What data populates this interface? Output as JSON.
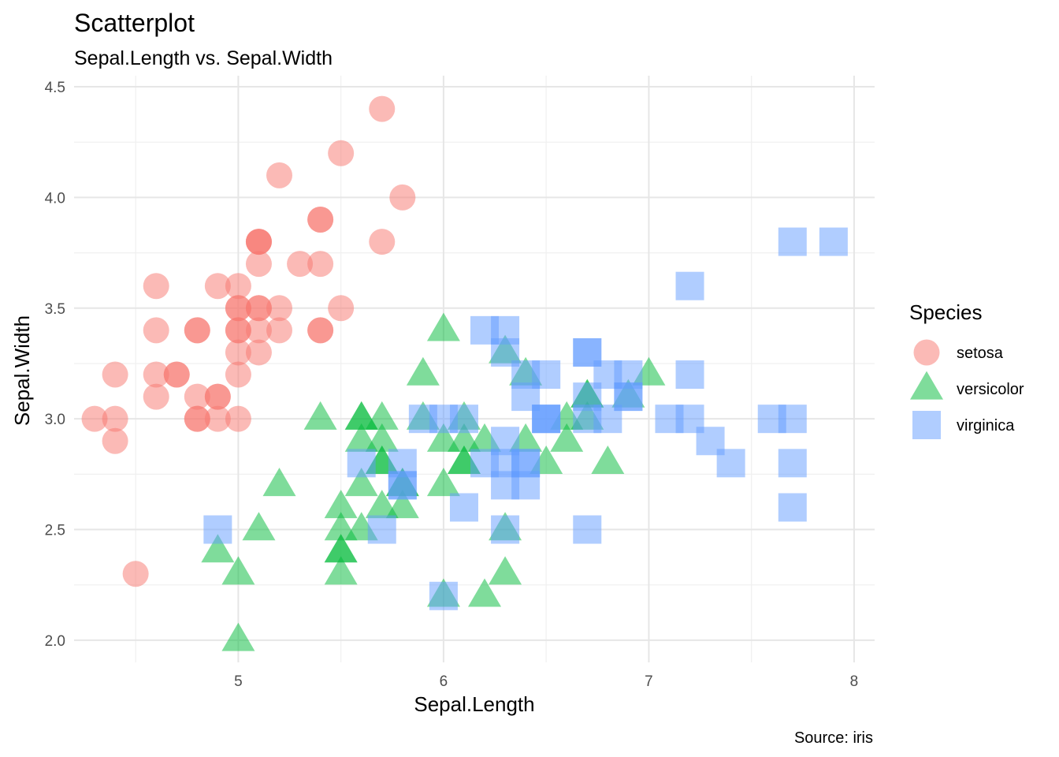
{
  "chart_data": {
    "type": "scatter",
    "title": "Scatterplot",
    "subtitle": "Sepal.Length vs. Sepal.Width",
    "caption": "Source: iris",
    "xlabel": "Sepal.Length",
    "ylabel": "Sepal.Width",
    "xlim": [
      4.2,
      8.1
    ],
    "ylim": [
      1.9,
      4.55
    ],
    "x_ticks": [
      5,
      6,
      7,
      8
    ],
    "x_tick_labels": [
      "5",
      "6",
      "7",
      "8"
    ],
    "x_minor_ticks": [
      4.5,
      5.5,
      6.5,
      7.5
    ],
    "y_ticks": [
      2.0,
      2.5,
      3.0,
      3.5,
      4.0,
      4.5
    ],
    "y_tick_labels": [
      "2.0",
      "2.5",
      "3.0",
      "3.5",
      "4.0",
      "4.5"
    ],
    "y_minor_ticks": [
      2.25,
      2.75,
      3.25,
      3.75,
      4.25
    ],
    "grid": true,
    "legend": {
      "title": "Species",
      "position": "right"
    },
    "series": [
      {
        "name": "setosa",
        "shape": "circle",
        "color": "#F8766D",
        "points": [
          [
            5.1,
            3.5
          ],
          [
            4.9,
            3.0
          ],
          [
            4.7,
            3.2
          ],
          [
            4.6,
            3.1
          ],
          [
            5.0,
            3.6
          ],
          [
            5.4,
            3.9
          ],
          [
            4.6,
            3.4
          ],
          [
            5.0,
            3.4
          ],
          [
            4.4,
            2.9
          ],
          [
            4.9,
            3.1
          ],
          [
            5.4,
            3.7
          ],
          [
            4.8,
            3.4
          ],
          [
            4.8,
            3.0
          ],
          [
            4.3,
            3.0
          ],
          [
            5.8,
            4.0
          ],
          [
            5.7,
            4.4
          ],
          [
            5.4,
            3.9
          ],
          [
            5.1,
            3.5
          ],
          [
            5.7,
            3.8
          ],
          [
            5.1,
            3.8
          ],
          [
            5.4,
            3.4
          ],
          [
            5.1,
            3.7
          ],
          [
            4.6,
            3.6
          ],
          [
            5.1,
            3.3
          ],
          [
            4.8,
            3.4
          ],
          [
            5.0,
            3.0
          ],
          [
            5.0,
            3.4
          ],
          [
            5.2,
            3.5
          ],
          [
            5.2,
            3.4
          ],
          [
            4.7,
            3.2
          ],
          [
            4.8,
            3.1
          ],
          [
            5.4,
            3.4
          ],
          [
            5.2,
            4.1
          ],
          [
            5.5,
            4.2
          ],
          [
            4.9,
            3.1
          ],
          [
            5.0,
            3.2
          ],
          [
            5.5,
            3.5
          ],
          [
            4.9,
            3.6
          ],
          [
            4.4,
            3.0
          ],
          [
            5.1,
            3.4
          ],
          [
            5.0,
            3.5
          ],
          [
            4.5,
            2.3
          ],
          [
            4.4,
            3.2
          ],
          [
            5.0,
            3.5
          ],
          [
            5.1,
            3.8
          ],
          [
            4.8,
            3.0
          ],
          [
            5.1,
            3.8
          ],
          [
            4.6,
            3.2
          ],
          [
            5.3,
            3.7
          ],
          [
            5.0,
            3.3
          ]
        ]
      },
      {
        "name": "versicolor",
        "shape": "triangle",
        "color": "#00BA38",
        "points": [
          [
            7.0,
            3.2
          ],
          [
            6.4,
            3.2
          ],
          [
            6.9,
            3.1
          ],
          [
            5.5,
            2.3
          ],
          [
            6.5,
            2.8
          ],
          [
            5.7,
            2.8
          ],
          [
            6.3,
            3.3
          ],
          [
            4.9,
            2.4
          ],
          [
            6.6,
            2.9
          ],
          [
            5.2,
            2.7
          ],
          [
            5.0,
            2.0
          ],
          [
            5.9,
            3.0
          ],
          [
            6.0,
            2.2
          ],
          [
            6.1,
            2.9
          ],
          [
            5.6,
            2.9
          ],
          [
            6.7,
            3.1
          ],
          [
            5.6,
            3.0
          ],
          [
            5.8,
            2.7
          ],
          [
            6.2,
            2.2
          ],
          [
            5.6,
            2.5
          ],
          [
            5.9,
            3.2
          ],
          [
            6.1,
            2.8
          ],
          [
            6.3,
            2.5
          ],
          [
            6.1,
            2.8
          ],
          [
            6.4,
            2.9
          ],
          [
            6.6,
            3.0
          ],
          [
            6.8,
            2.8
          ],
          [
            6.7,
            3.0
          ],
          [
            6.0,
            2.9
          ],
          [
            5.7,
            2.6
          ],
          [
            5.5,
            2.4
          ],
          [
            5.5,
            2.4
          ],
          [
            5.8,
            2.7
          ],
          [
            6.0,
            2.7
          ],
          [
            5.4,
            3.0
          ],
          [
            6.0,
            3.4
          ],
          [
            6.7,
            3.1
          ],
          [
            6.3,
            2.3
          ],
          [
            5.6,
            3.0
          ],
          [
            5.5,
            2.5
          ],
          [
            5.5,
            2.6
          ],
          [
            6.1,
            3.0
          ],
          [
            5.8,
            2.6
          ],
          [
            5.0,
            2.3
          ],
          [
            5.6,
            2.7
          ],
          [
            5.7,
            3.0
          ],
          [
            5.7,
            2.9
          ],
          [
            6.2,
            2.9
          ],
          [
            5.1,
            2.5
          ],
          [
            5.7,
            2.8
          ]
        ]
      },
      {
        "name": "virginica",
        "shape": "square",
        "color": "#619CFF",
        "points": [
          [
            6.3,
            3.3
          ],
          [
            5.8,
            2.7
          ],
          [
            7.1,
            3.0
          ],
          [
            6.3,
            2.9
          ],
          [
            6.5,
            3.0
          ],
          [
            7.6,
            3.0
          ],
          [
            4.9,
            2.5
          ],
          [
            7.3,
            2.9
          ],
          [
            6.7,
            2.5
          ],
          [
            7.2,
            3.6
          ],
          [
            6.5,
            3.2
          ],
          [
            6.4,
            2.7
          ],
          [
            6.8,
            3.0
          ],
          [
            5.7,
            2.5
          ],
          [
            5.8,
            2.8
          ],
          [
            6.4,
            3.2
          ],
          [
            6.5,
            3.0
          ],
          [
            7.7,
            3.8
          ],
          [
            7.7,
            2.6
          ],
          [
            6.0,
            2.2
          ],
          [
            6.9,
            3.2
          ],
          [
            5.6,
            2.8
          ],
          [
            7.7,
            2.8
          ],
          [
            6.3,
            2.7
          ],
          [
            6.7,
            3.3
          ],
          [
            7.2,
            3.2
          ],
          [
            6.2,
            2.8
          ],
          [
            6.1,
            3.0
          ],
          [
            6.4,
            2.8
          ],
          [
            7.2,
            3.0
          ],
          [
            7.4,
            2.8
          ],
          [
            7.9,
            3.8
          ],
          [
            6.4,
            2.8
          ],
          [
            6.3,
            2.8
          ],
          [
            6.1,
            2.6
          ],
          [
            7.7,
            3.0
          ],
          [
            6.3,
            3.4
          ],
          [
            6.4,
            3.1
          ],
          [
            6.0,
            3.0
          ],
          [
            6.9,
            3.1
          ],
          [
            6.7,
            3.1
          ],
          [
            6.9,
            3.1
          ],
          [
            5.8,
            2.7
          ],
          [
            6.8,
            3.2
          ],
          [
            6.7,
            3.3
          ],
          [
            6.7,
            3.0
          ],
          [
            6.3,
            2.5
          ],
          [
            6.5,
            3.0
          ],
          [
            6.2,
            3.4
          ],
          [
            5.9,
            3.0
          ]
        ]
      }
    ]
  }
}
